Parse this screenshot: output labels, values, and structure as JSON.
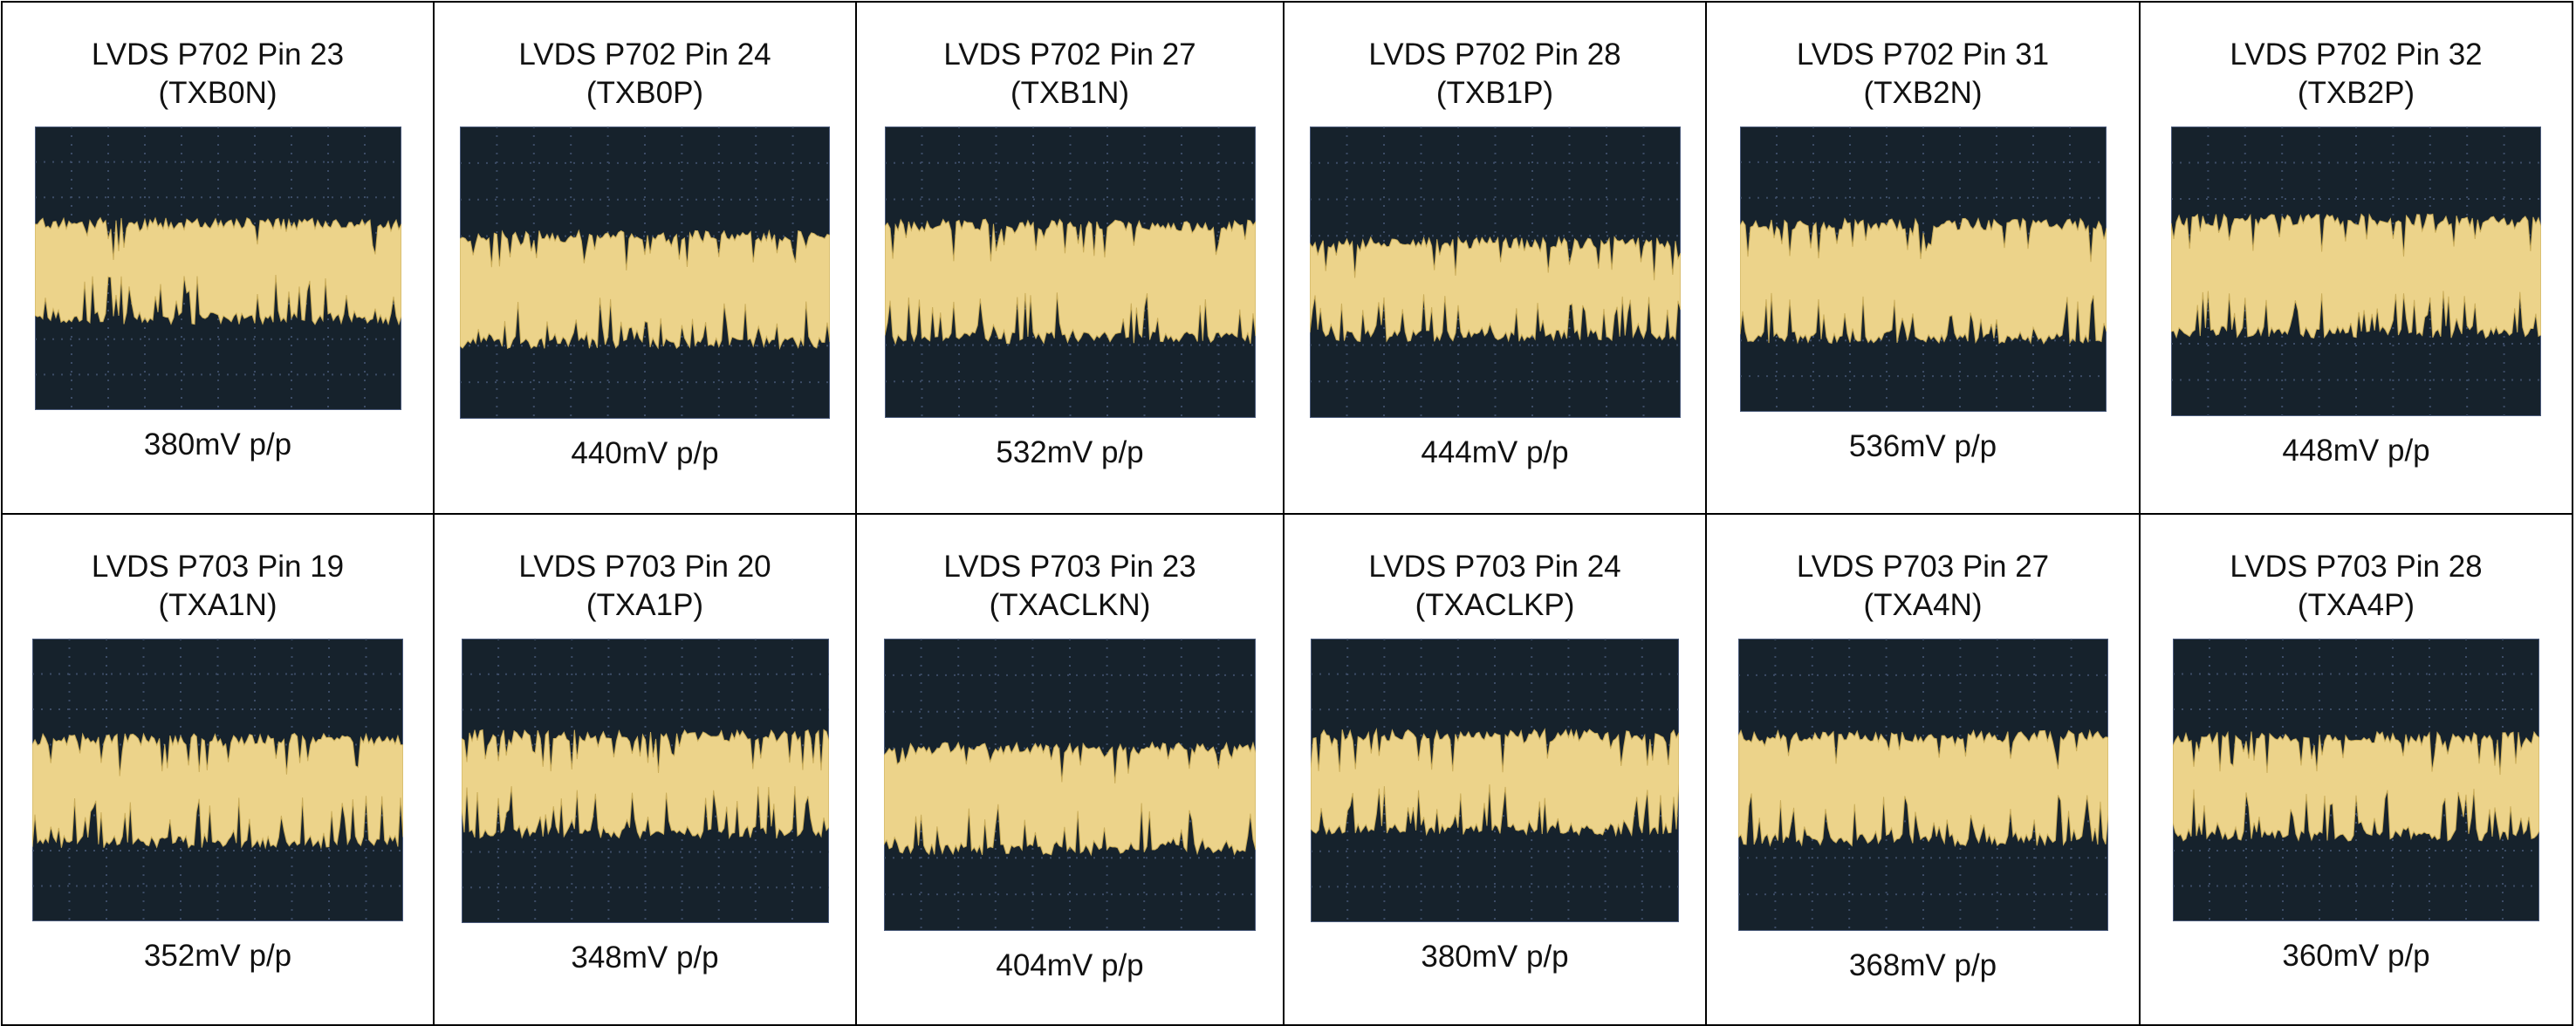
{
  "rows": [
    [
      {
        "title": "LVDS P702 Pin 23",
        "signal": "(TXB0N)",
        "amplitude": "380mV p/p"
      },
      {
        "title": "LVDS P702 Pin 24",
        "signal": "(TXB0P)",
        "amplitude": "440mV p/p"
      },
      {
        "title": "LVDS P702 Pin 27",
        "signal": "(TXB1N)",
        "amplitude": "532mV p/p"
      },
      {
        "title": "LVDS P702 Pin 28",
        "signal": "(TXB1P)",
        "amplitude": "444mV p/p"
      },
      {
        "title": "LVDS P702 Pin 31",
        "signal": "(TXB2N)",
        "amplitude": "536mV p/p"
      },
      {
        "title": "LVDS P702 Pin 32",
        "signal": "(TXB2P)",
        "amplitude": "448mV p/p"
      }
    ],
    [
      {
        "title": "LVDS P703 Pin 19",
        "signal": "(TXA1N)",
        "amplitude": "352mV p/p"
      },
      {
        "title": "LVDS P703 Pin 20",
        "signal": "(TXA1P)",
        "amplitude": "348mV p/p"
      },
      {
        "title": "LVDS P703 Pin 23",
        "signal": "(TXACLKN)",
        "amplitude": "404mV p/p"
      },
      {
        "title": "LVDS P703 Pin 24",
        "signal": "(TXACLKP)",
        "amplitude": "380mV p/p"
      },
      {
        "title": "LVDS P703 Pin 27",
        "signal": "(TXA4N)",
        "amplitude": "368mV p/p"
      },
      {
        "title": "LVDS P703 Pin 28",
        "signal": "(TXA4P)",
        "amplitude": "360mV p/p"
      }
    ]
  ]
}
